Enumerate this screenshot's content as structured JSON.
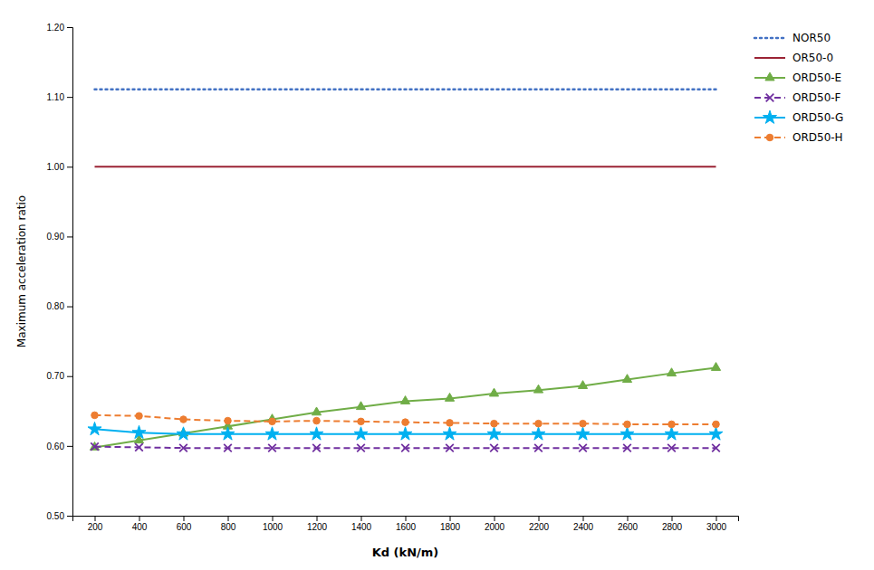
{
  "chart_data": {
    "type": "line",
    "xlabel": "Kd (kN/m)",
    "ylabel": "Maximum acceleration ratio",
    "x": [
      200,
      400,
      600,
      800,
      1000,
      1200,
      1400,
      1600,
      1800,
      2000,
      2200,
      2400,
      2600,
      2800,
      3000
    ],
    "series": [
      {
        "name": "NOR50",
        "color": "#4472C4",
        "line_style": "dotted",
        "values": [
          1.111,
          1.111,
          1.111,
          1.111,
          1.111,
          1.111,
          1.111,
          1.111,
          1.111,
          1.111,
          1.111,
          1.111,
          1.111,
          1.111,
          1.111
        ]
      },
      {
        "name": "OR50-0",
        "color": "#9B2335",
        "line_style": "solid",
        "values": [
          1.0,
          1.0,
          1.0,
          1.0,
          1.0,
          1.0,
          1.0,
          1.0,
          1.0,
          1.0,
          1.0,
          1.0,
          1.0,
          1.0,
          1.0
        ]
      },
      {
        "name": "ORD50-E",
        "color": "#70AD47",
        "line_style": "solid",
        "marker": "triangle",
        "values": [
          0.598,
          0.608,
          0.618,
          0.628,
          0.638,
          0.648,
          0.656,
          0.664,
          0.668,
          0.675,
          0.68,
          0.686,
          0.695,
          0.704,
          0.712
        ]
      },
      {
        "name": "ORD50-F",
        "color": "#7030A0",
        "line_style": "dashed",
        "marker": "x",
        "values": [
          0.599,
          0.598,
          0.597,
          0.597,
          0.597,
          0.597,
          0.597,
          0.597,
          0.597,
          0.597,
          0.597,
          0.597,
          0.597,
          0.597,
          0.597
        ]
      },
      {
        "name": "ORD50-G",
        "color": "#00B0F0",
        "line_style": "solid",
        "marker": "star",
        "values": [
          0.624,
          0.619,
          0.617,
          0.617,
          0.617,
          0.617,
          0.617,
          0.617,
          0.617,
          0.617,
          0.617,
          0.617,
          0.617,
          0.617,
          0.617
        ]
      },
      {
        "name": "ORD50-H",
        "color": "#ED7D31",
        "line_style": "dashed",
        "marker": "circle",
        "values": [
          0.644,
          0.643,
          0.638,
          0.636,
          0.635,
          0.636,
          0.635,
          0.634,
          0.633,
          0.632,
          0.632,
          0.632,
          0.631,
          0.631,
          0.631
        ]
      }
    ],
    "xlim": [
      100,
      3100
    ],
    "xticks": [
      200,
      400,
      600,
      800,
      1000,
      1200,
      1400,
      1600,
      1800,
      2000,
      2200,
      2400,
      2600,
      2800,
      3000
    ],
    "ylim": [
      0.5,
      1.2
    ],
    "yticks": [
      {
        "value": 0.5,
        "label": "0.50"
      },
      {
        "value": 0.6,
        "label": "0.60"
      },
      {
        "value": 0.7,
        "label": "0.70"
      },
      {
        "value": 0.8,
        "label": "0.80"
      },
      {
        "value": 0.9,
        "label": "0.90"
      },
      {
        "value": 1.0,
        "label": "1.00"
      },
      {
        "value": 1.1,
        "label": "1.10"
      },
      {
        "value": 1.2,
        "label": "1.20"
      }
    ],
    "grid": false,
    "legend": "upper right"
  }
}
